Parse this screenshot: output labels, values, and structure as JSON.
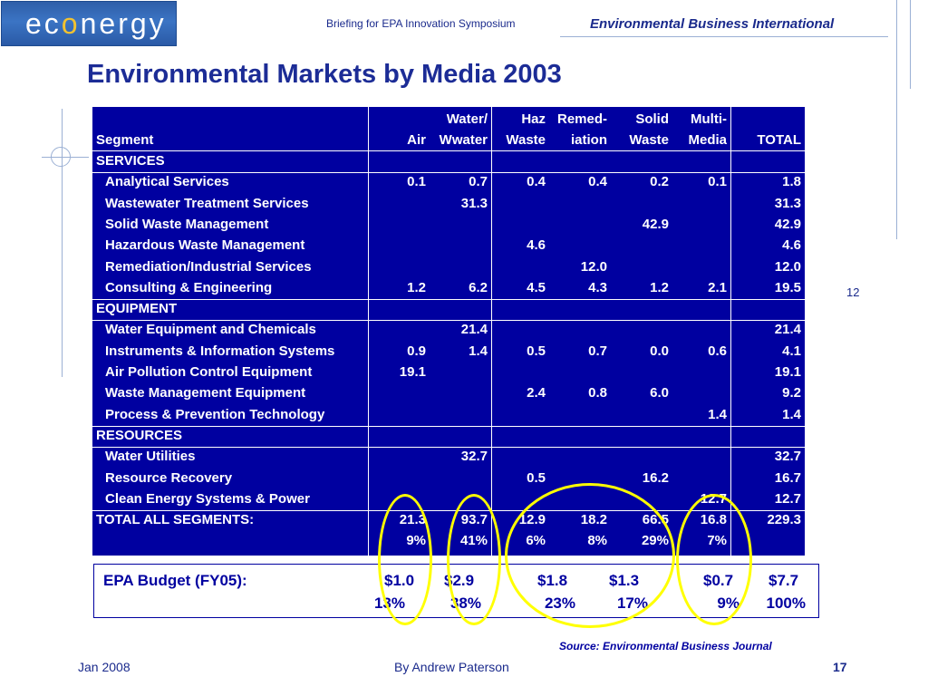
{
  "header": {
    "logo_text_a": "ec",
    "logo_text_b": "o",
    "logo_text_c": "nergy",
    "center": "Briefing for EPA Innovation Symposium",
    "right": "Environmental Business International"
  },
  "title": "Environmental Markets by Media 2003",
  "side_page_number": "12",
  "table": {
    "columns_top": [
      "",
      "",
      "Water/",
      "Haz",
      "Remed-",
      "Solid",
      "Multi-",
      ""
    ],
    "columns_bottom": [
      "Segment",
      "Air",
      "Wwater",
      "Waste",
      "iation",
      "Waste",
      "Media",
      "TOTAL"
    ],
    "sections": [
      {
        "name": "SERVICES",
        "rows": [
          {
            "label": "Analytical Services",
            "values": [
              "0.1",
              "0.7",
              "0.4",
              "0.4",
              "0.2",
              "0.1",
              "1.8"
            ]
          },
          {
            "label": "Wastewater Treatment Services",
            "values": [
              "",
              "31.3",
              "",
              "",
              "",
              "",
              "31.3"
            ]
          },
          {
            "label": "Solid Waste Management",
            "values": [
              "",
              "",
              "",
              "",
              "42.9",
              "",
              "42.9"
            ]
          },
          {
            "label": "Hazardous Waste Management",
            "values": [
              "",
              "",
              "4.6",
              "",
              "",
              "",
              "4.6"
            ]
          },
          {
            "label": "Remediation/Industrial Services",
            "values": [
              "",
              "",
              "",
              "12.0",
              "",
              "",
              "12.0"
            ]
          },
          {
            "label": "Consulting & Engineering",
            "values": [
              "1.2",
              "6.2",
              "4.5",
              "4.3",
              "1.2",
              "2.1",
              "19.5"
            ]
          }
        ]
      },
      {
        "name": "EQUIPMENT",
        "rows": [
          {
            "label": "Water Equipment and Chemicals",
            "values": [
              "",
              "21.4",
              "",
              "",
              "",
              "",
              "21.4"
            ]
          },
          {
            "label": "Instruments & Information Systems",
            "values": [
              "0.9",
              "1.4",
              "0.5",
              "0.7",
              "0.0",
              "0.6",
              "4.1"
            ]
          },
          {
            "label": "Air Pollution Control Equipment",
            "values": [
              "19.1",
              "",
              "",
              "",
              "",
              "",
              "19.1"
            ]
          },
          {
            "label": "Waste Management Equipment",
            "values": [
              "",
              "",
              "2.4",
              "0.8",
              "6.0",
              "",
              "9.2"
            ]
          },
          {
            "label": "Process & Prevention Technology",
            "values": [
              "",
              "",
              "",
              "",
              "",
              "1.4",
              "1.4"
            ]
          }
        ]
      },
      {
        "name": "RESOURCES",
        "rows": [
          {
            "label": "Water Utilities",
            "values": [
              "",
              "32.7",
              "",
              "",
              "",
              "",
              "32.7"
            ]
          },
          {
            "label": "Resource Recovery",
            "values": [
              "",
              "",
              "0.5",
              "",
              "16.2",
              "",
              "16.7"
            ]
          },
          {
            "label": "Clean Energy Systems & Power",
            "values": [
              "",
              "",
              "",
              "",
              "",
              "12.7",
              "12.7"
            ]
          }
        ]
      }
    ],
    "total_label": "TOTAL ALL SEGMENTS:",
    "total_values": [
      "21.3",
      "93.7",
      "12.9",
      "18.2",
      "66.5",
      "16.8",
      "229.3"
    ],
    "total_pcts": [
      "9%",
      "41%",
      "6%",
      "8%",
      "29%",
      "7%",
      ""
    ]
  },
  "budget": {
    "label": "EPA Budget (FY05):",
    "values": [
      "$1.0",
      "$2.9",
      "$1.8",
      "$1.3",
      "$0.7",
      "$7.7"
    ],
    "pcts": [
      "13%",
      "38%",
      "23%",
      "17%",
      "9%",
      "100%"
    ]
  },
  "source": "Source: Environmental Business Journal",
  "footer": {
    "left": "Jan 2008",
    "center": "By Andrew Paterson",
    "right": "17"
  },
  "colors": {
    "table_bg": "#0000a0",
    "title": "#1c2c96",
    "highlight": "#ffff00"
  }
}
